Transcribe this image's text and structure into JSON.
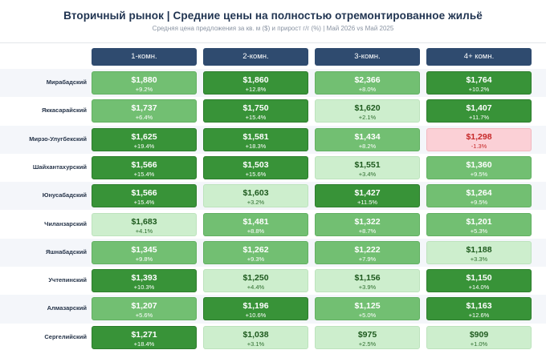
{
  "title": "Вторичный рынок  |  Средние цены на полностью отремонтированное жильё",
  "subtitle": "Средняя цена предложения за кв. м ($) и прирост г/г (%)  |  Май 2026 vs Май 2025",
  "chart_data": {
    "type": "table",
    "columns": [
      "1-комн.",
      "2-комн.",
      "3-комн.",
      "4+ комн."
    ],
    "rows": [
      {
        "district": "Мирабадский",
        "cells": [
          {
            "price": "$1,880",
            "growth": "+9.2%",
            "level": "mid"
          },
          {
            "price": "$1,860",
            "growth": "+12.8%",
            "level": "dark"
          },
          {
            "price": "$2,366",
            "growth": "+8.0%",
            "level": "mid"
          },
          {
            "price": "$1,764",
            "growth": "+10.2%",
            "level": "dark"
          }
        ]
      },
      {
        "district": "Яккасарайский",
        "cells": [
          {
            "price": "$1,737",
            "growth": "+6.4%",
            "level": "mid"
          },
          {
            "price": "$1,750",
            "growth": "+15.4%",
            "level": "dark"
          },
          {
            "price": "$1,620",
            "growth": "+2.1%",
            "level": "light"
          },
          {
            "price": "$1,407",
            "growth": "+11.7%",
            "level": "dark"
          }
        ]
      },
      {
        "district": "Мирзо-Улугбекский",
        "cells": [
          {
            "price": "$1,625",
            "growth": "+19.4%",
            "level": "dark"
          },
          {
            "price": "$1,581",
            "growth": "+18.3%",
            "level": "dark"
          },
          {
            "price": "$1,434",
            "growth": "+8.2%",
            "level": "mid"
          },
          {
            "price": "$1,298",
            "growth": "-1.3%",
            "level": "neg"
          }
        ]
      },
      {
        "district": "Шайхантахурский",
        "cells": [
          {
            "price": "$1,566",
            "growth": "+15.4%",
            "level": "dark"
          },
          {
            "price": "$1,503",
            "growth": "+15.6%",
            "level": "dark"
          },
          {
            "price": "$1,551",
            "growth": "+3.4%",
            "level": "light"
          },
          {
            "price": "$1,360",
            "growth": "+9.5%",
            "level": "mid"
          }
        ]
      },
      {
        "district": "Юнусабадский",
        "cells": [
          {
            "price": "$1,566",
            "growth": "+15.4%",
            "level": "dark"
          },
          {
            "price": "$1,603",
            "growth": "+3.2%",
            "level": "light"
          },
          {
            "price": "$1,427",
            "growth": "+11.5%",
            "level": "dark"
          },
          {
            "price": "$1,264",
            "growth": "+9.5%",
            "level": "mid"
          }
        ]
      },
      {
        "district": "Чиланзарский",
        "cells": [
          {
            "price": "$1,683",
            "growth": "+4.1%",
            "level": "light"
          },
          {
            "price": "$1,481",
            "growth": "+8.8%",
            "level": "mid"
          },
          {
            "price": "$1,322",
            "growth": "+8.7%",
            "level": "mid"
          },
          {
            "price": "$1,201",
            "growth": "+5.3%",
            "level": "mid"
          }
        ]
      },
      {
        "district": "Яшнабадский",
        "cells": [
          {
            "price": "$1,345",
            "growth": "+9.8%",
            "level": "mid"
          },
          {
            "price": "$1,262",
            "growth": "+9.3%",
            "level": "mid"
          },
          {
            "price": "$1,222",
            "growth": "+7.9%",
            "level": "mid"
          },
          {
            "price": "$1,188",
            "growth": "+3.3%",
            "level": "light"
          }
        ]
      },
      {
        "district": "Учтепинский",
        "cells": [
          {
            "price": "$1,393",
            "growth": "+10.3%",
            "level": "dark"
          },
          {
            "price": "$1,250",
            "growth": "+4.4%",
            "level": "light"
          },
          {
            "price": "$1,156",
            "growth": "+3.9%",
            "level": "light"
          },
          {
            "price": "$1,150",
            "growth": "+14.0%",
            "level": "dark"
          }
        ]
      },
      {
        "district": "Алмазарский",
        "cells": [
          {
            "price": "$1,207",
            "growth": "+5.6%",
            "level": "mid"
          },
          {
            "price": "$1,196",
            "growth": "+10.6%",
            "level": "dark"
          },
          {
            "price": "$1,125",
            "growth": "+5.0%",
            "level": "mid"
          },
          {
            "price": "$1,163",
            "growth": "+12.6%",
            "level": "dark"
          }
        ]
      },
      {
        "district": "Сергелийский",
        "cells": [
          {
            "price": "$1,271",
            "growth": "+18.4%",
            "level": "dark"
          },
          {
            "price": "$1,038",
            "growth": "+3.1%",
            "level": "light"
          },
          {
            "price": "$975",
            "growth": "+2.5%",
            "level": "light"
          },
          {
            "price": "$909",
            "growth": "+1.0%",
            "level": "light"
          }
        ]
      }
    ]
  },
  "colors": {
    "header": "#2f4b6f",
    "dark_green": "#389338",
    "mid_green": "#72bf72",
    "light_green": "#cdeecd",
    "negative": "#fbd0d6"
  }
}
